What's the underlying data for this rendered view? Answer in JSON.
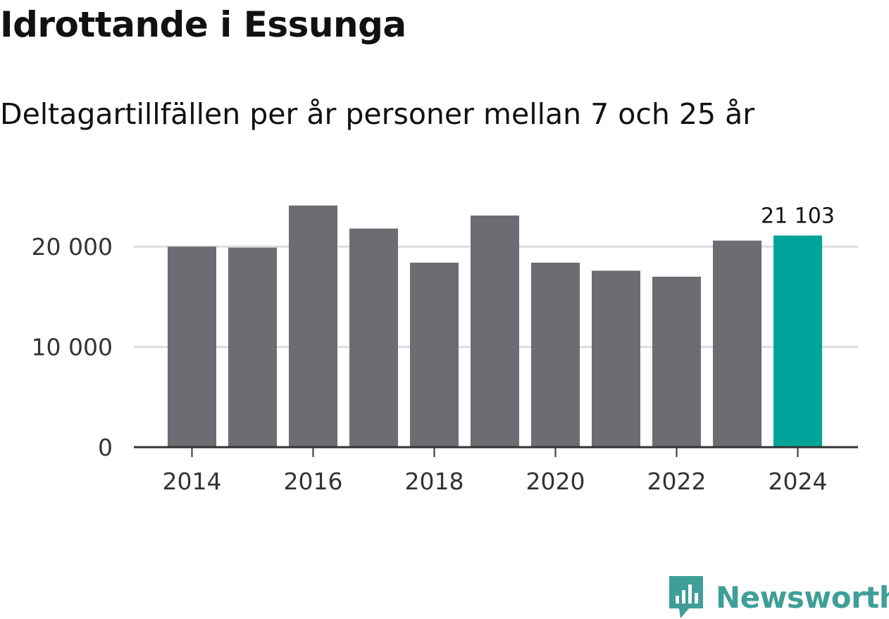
{
  "header": {
    "title": "Idrottande i Essunga",
    "subtitle": "Deltagartillfällen per år personer mellan 7 och 25 år"
  },
  "brand": {
    "name": "Newsworthy",
    "icon": "newsworthy-logo-icon",
    "color": "#3f9e98"
  },
  "colors": {
    "bar": "#6d6c72",
    "highlight": "#00a399",
    "grid": "#dddddd",
    "axis": "#333333"
  },
  "chart_data": {
    "type": "bar",
    "title": "Idrottande i Essunga",
    "subtitle": "Deltagartillfällen per år personer mellan 7 och 25 år",
    "xlabel": "",
    "ylabel": "",
    "categories": [
      "2014",
      "2015",
      "2016",
      "2017",
      "2018",
      "2019",
      "2020",
      "2021",
      "2022",
      "2023",
      "2024"
    ],
    "values": [
      20000,
      19900,
      24100,
      21800,
      18400,
      23100,
      18400,
      17600,
      17000,
      20600,
      21103
    ],
    "highlight_index": 10,
    "highlight_label": "21 103",
    "ylim": [
      0,
      25000
    ],
    "yticks": [
      0,
      10000,
      20000
    ],
    "ytick_labels": [
      "0",
      "10 000",
      "20 000"
    ],
    "xticks": [
      "2014",
      "2016",
      "2018",
      "2020",
      "2022",
      "2024"
    ],
    "grid": true,
    "legend": "none"
  }
}
